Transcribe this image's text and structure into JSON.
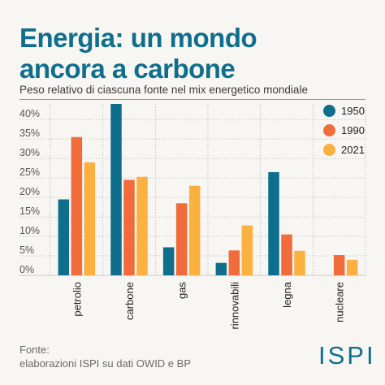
{
  "header": {
    "title_line1": "Energia: un mondo",
    "title_line2": "ancora a carbone",
    "subtitle": "Peso relativo di ciascuna fonte nel mix energetico mondiale"
  },
  "footer": {
    "source_label": "Fonte:",
    "source_text": "elaborazioni ISPI su dati OWID e BP",
    "logo": "ISPI"
  },
  "chart_data": {
    "type": "bar",
    "categories": [
      "petrolio",
      "carbone",
      "gas",
      "rinnovabili",
      "legna",
      "nucleare"
    ],
    "series": [
      {
        "name": "1950",
        "color": "#0f6e8c",
        "values": [
          19.5,
          44,
          7.2,
          3.2,
          26.5,
          0
        ]
      },
      {
        "name": "1990",
        "color": "#f26b3a",
        "values": [
          35.5,
          24.5,
          18.5,
          6.4,
          10.5,
          5.2
        ]
      },
      {
        "name": "2021",
        "color": "#fbb040",
        "values": [
          29,
          25.3,
          23,
          12.8,
          6.3,
          4
        ]
      }
    ],
    "ylim": [
      0,
      45
    ],
    "yticks": [
      "0%",
      "5%",
      "10%",
      "15%",
      "20%",
      "25%",
      "30%",
      "35%",
      "40%"
    ],
    "ytick_values": [
      0,
      5,
      10,
      15,
      20,
      25,
      30,
      35,
      40
    ],
    "grid": true,
    "legend": "top-right"
  }
}
